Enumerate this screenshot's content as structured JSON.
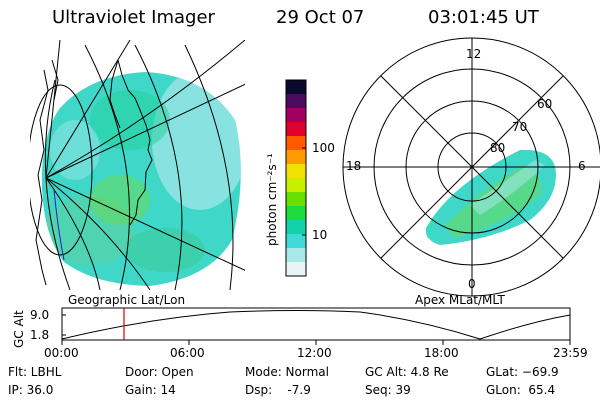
{
  "header": {
    "instrument": "Ultraviolet Imager",
    "date": "29 Oct 07",
    "time": "03:01:45 UT"
  },
  "colorbar": {
    "unit_label": "photon cm⁻²s⁻¹",
    "ticks": [
      "100",
      "10"
    ],
    "colors": [
      "#0a0a30",
      "#4a0a60",
      "#a00060",
      "#e0002a",
      "#ff5a00",
      "#ff9a00",
      "#f2e000",
      "#c8ee00",
      "#6ae000",
      "#1bdc3a",
      "#12d0a8",
      "#40d8d8",
      "#a8e8ea",
      "#e8f4f6"
    ]
  },
  "left_map": {
    "label": "Geographic Lat/Lon"
  },
  "polar_plot": {
    "label": "Apex MLat/MLT",
    "mlt_labels": [
      "12",
      "6",
      "0",
      "18"
    ],
    "lat_labels": [
      "60",
      "70",
      "80"
    ]
  },
  "altitude_plot": {
    "ylabel": "GC Alt",
    "y_ticks": [
      "9.0",
      "1.8"
    ],
    "x_ticks": [
      "00:00",
      "06:00",
      "12:00",
      "18:00",
      "23:59"
    ]
  },
  "info": {
    "filter": "Flt: LBHL",
    "ip": "IP: 36.0",
    "door": "Door: Open",
    "gain": "Gain: 14",
    "mode": "Mode: Normal",
    "dsp": "Dsp:    -7.9",
    "gc_alt": "GC Alt: 4.8 Re",
    "seq": "Seq: 39",
    "glat": "GLat: −69.9",
    "glon": "GLon:  65.4"
  }
}
